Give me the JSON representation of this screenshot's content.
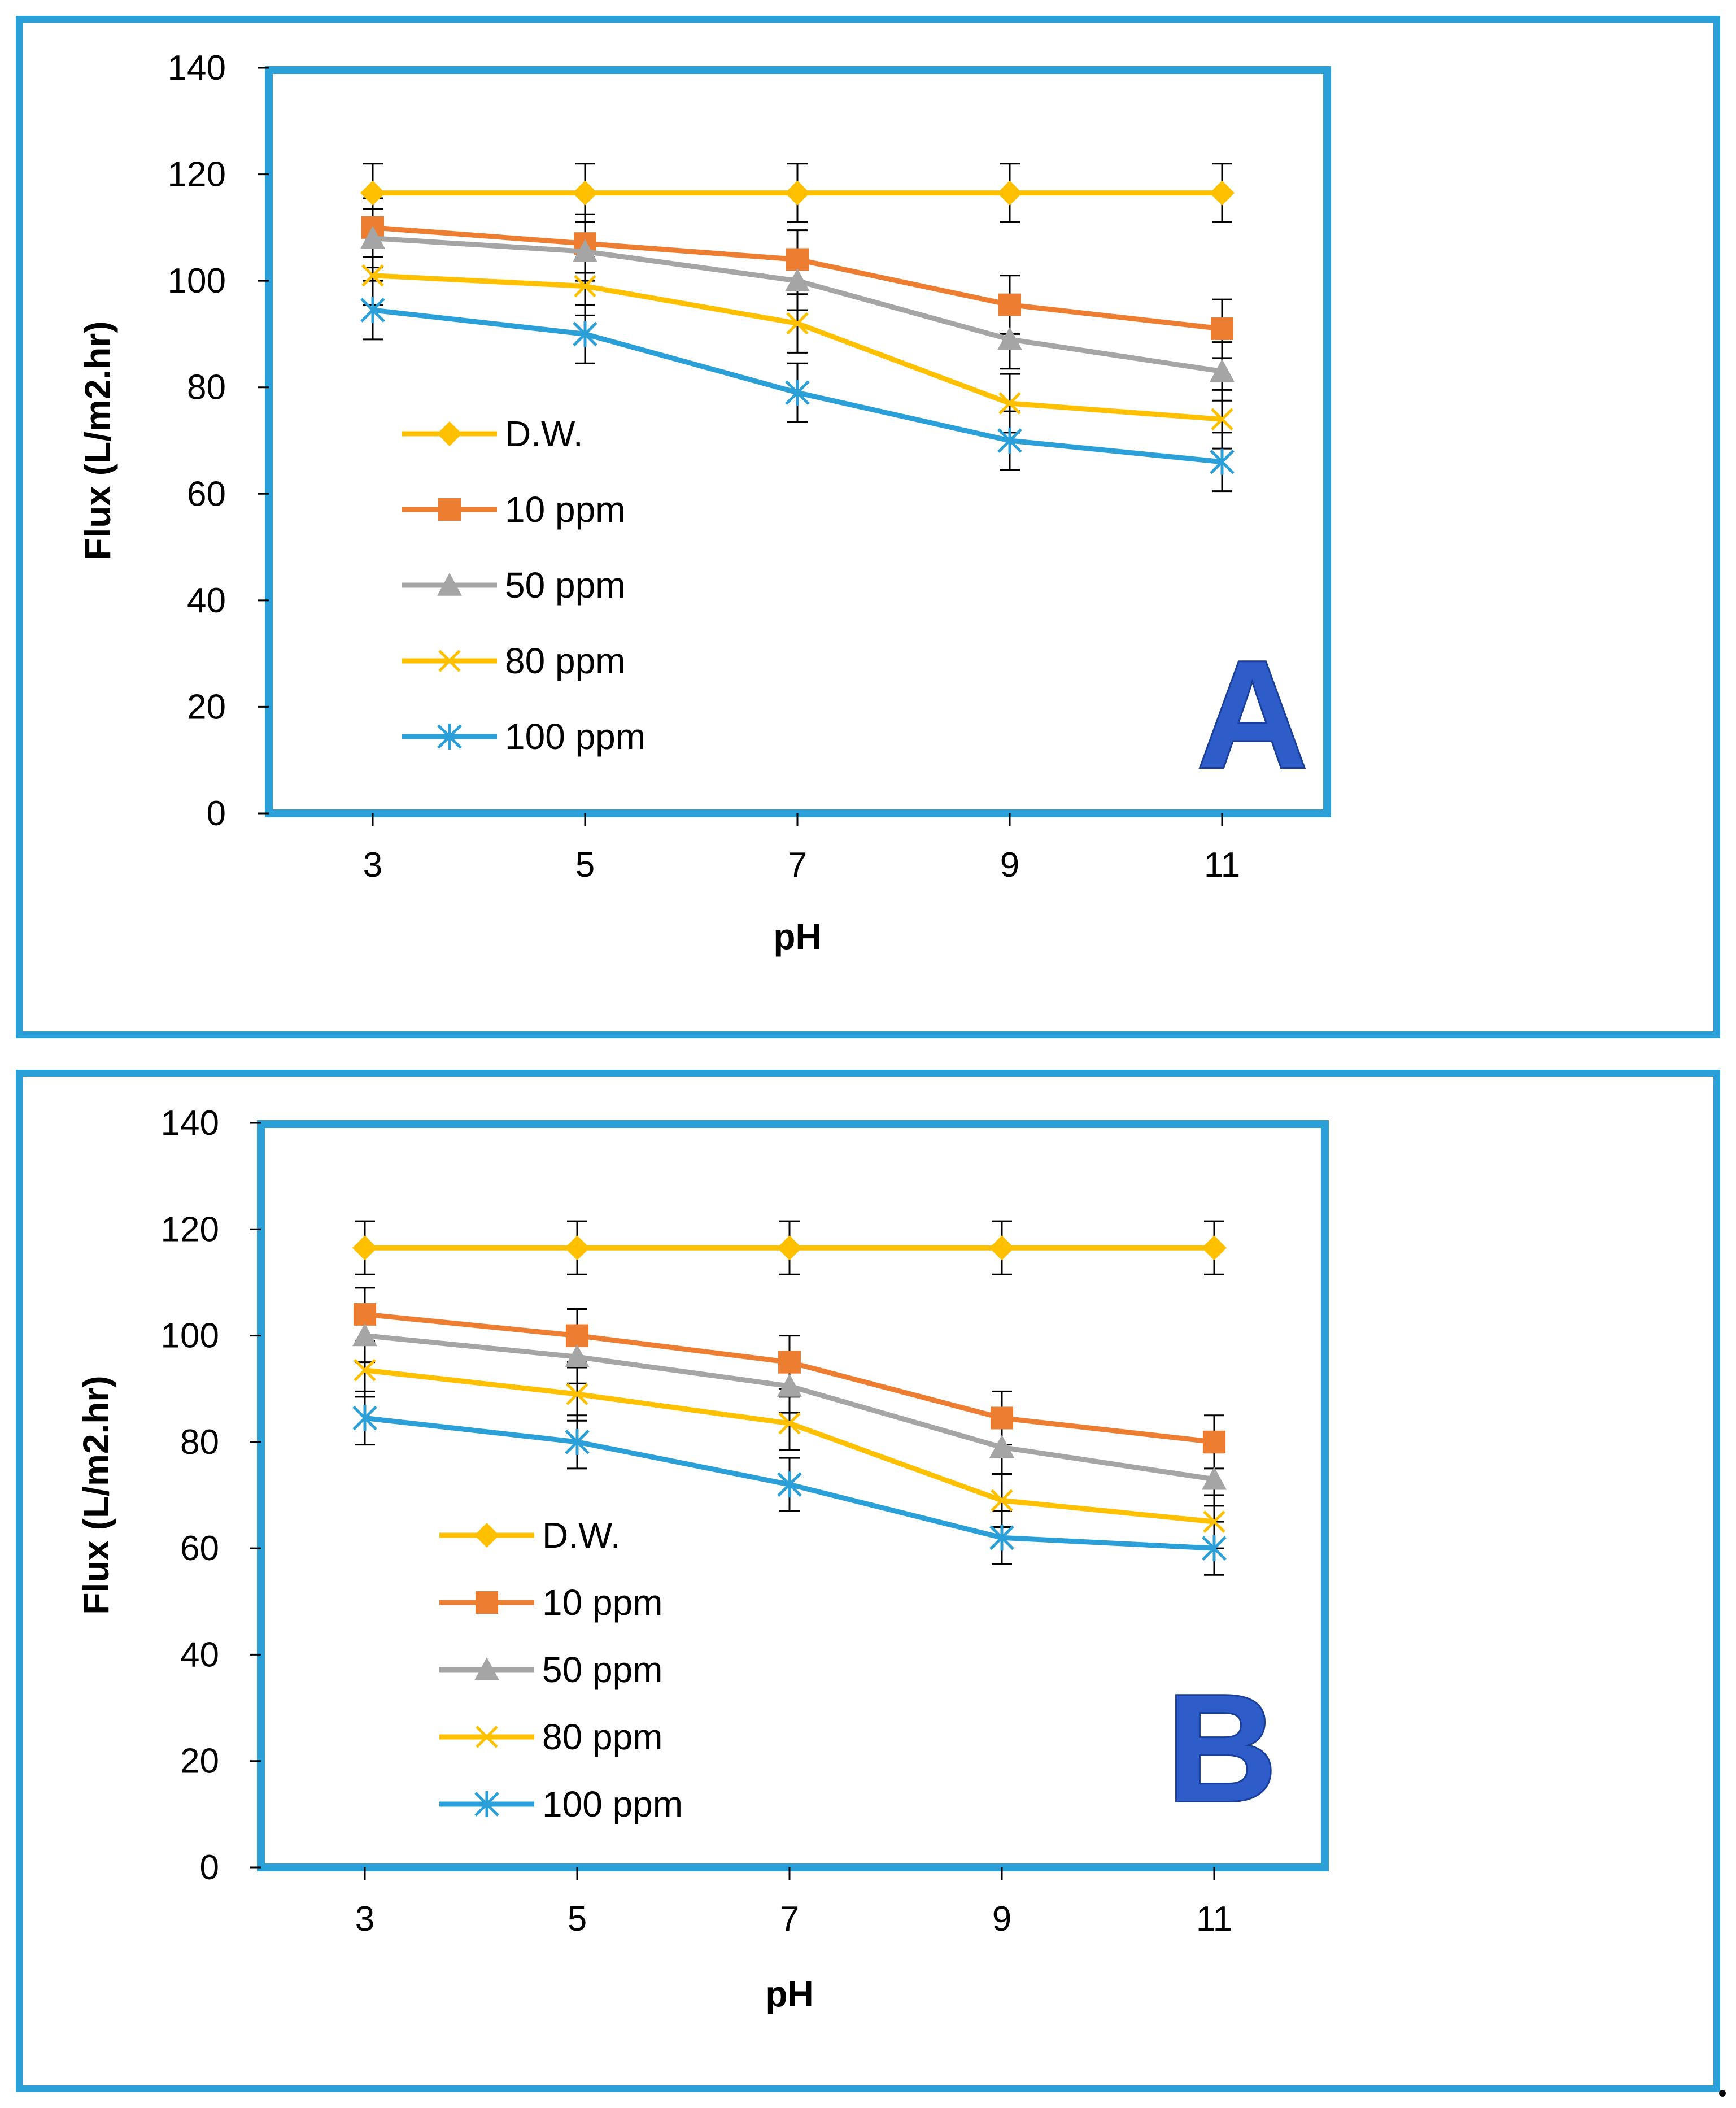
{
  "colors": {
    "frame": "#2a9fd8",
    "dw": "#ffc000",
    "ppm10": "#ed7d31",
    "ppm50": "#a5a5a5",
    "ppm80": "#ffc000",
    "ppm100": "#2a9fd8",
    "letter": "#2e5cc8"
  },
  "chart_data": [
    {
      "type": "line",
      "title": "",
      "panel_label": "A",
      "xlabel": "pH",
      "ylabel": "Flux (L/m2.hr)",
      "categories": [
        "3",
        "5",
        "7",
        "9",
        "11"
      ],
      "ylim": [
        0,
        140
      ],
      "yticks": [
        "0",
        "20",
        "40",
        "60",
        "80",
        "100",
        "120",
        "140"
      ],
      "grid": false,
      "legend_position": "left",
      "error_bar": 5.5,
      "series": [
        {
          "name": "D.W.",
          "marker": "diamond",
          "values": [
            116.5,
            116.5,
            116.5,
            116.5,
            116.5
          ]
        },
        {
          "name": "10 ppm",
          "marker": "square",
          "values": [
            110,
            107,
            104,
            95.5,
            91
          ]
        },
        {
          "name": "50 ppm",
          "marker": "triangle",
          "values": [
            108,
            105.5,
            100,
            89,
            83
          ]
        },
        {
          "name": "80 ppm",
          "marker": "x",
          "values": [
            101,
            99,
            92,
            77,
            74
          ]
        },
        {
          "name": "100 ppm",
          "marker": "star",
          "values": [
            94.5,
            90,
            79,
            70,
            66
          ]
        }
      ]
    },
    {
      "type": "line",
      "title": "",
      "panel_label": "B",
      "xlabel": "pH",
      "ylabel": "Flux (L/m2.hr)",
      "categories": [
        "3",
        "5",
        "7",
        "9",
        "11"
      ],
      "ylim": [
        0,
        140
      ],
      "yticks": [
        "0",
        "20",
        "40",
        "60",
        "80",
        "100",
        "120",
        "140"
      ],
      "grid": false,
      "legend_position": "left",
      "error_bar": 5.0,
      "series": [
        {
          "name": "D.W.",
          "marker": "diamond",
          "values": [
            116.5,
            116.5,
            116.5,
            116.5,
            116.5
          ]
        },
        {
          "name": "10 ppm",
          "marker": "square",
          "values": [
            104,
            100,
            95,
            84.5,
            80
          ]
        },
        {
          "name": "50 ppm",
          "marker": "triangle",
          "values": [
            100,
            96,
            90.5,
            79,
            73
          ]
        },
        {
          "name": "80 ppm",
          "marker": "x",
          "values": [
            93.5,
            89,
            83.5,
            69,
            65
          ]
        },
        {
          "name": "100 ppm",
          "marker": "star",
          "values": [
            84.5,
            80,
            72,
            62,
            60
          ]
        }
      ]
    }
  ]
}
